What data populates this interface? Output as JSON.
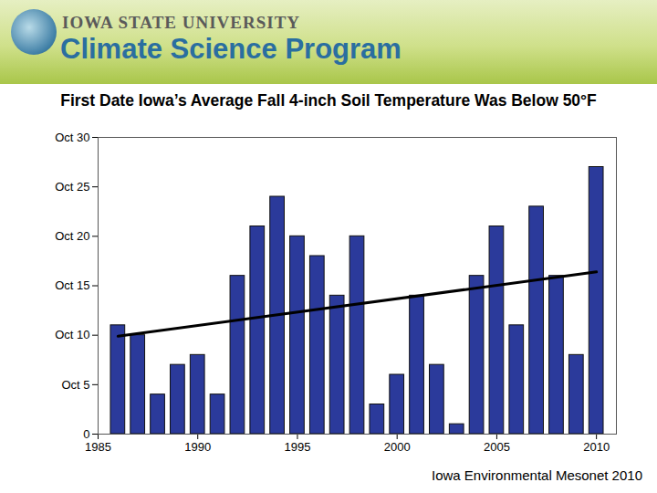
{
  "header": {
    "university": "IOWA STATE UNIVERSITY",
    "program": "Climate Science Program"
  },
  "chart_data": {
    "type": "bar",
    "title": "First Date Iowa’s Average Fall 4-inch Soil Temperature Was Below 50°F",
    "x": [
      1986,
      1987,
      1988,
      1989,
      1990,
      1991,
      1992,
      1993,
      1994,
      1995,
      1996,
      1997,
      1998,
      1999,
      2000,
      2001,
      2002,
      2003,
      2004,
      2005,
      2006,
      2007,
      2008,
      2009,
      2010
    ],
    "values": [
      11,
      10,
      4,
      7,
      8,
      4,
      16,
      21,
      24,
      20,
      18,
      14,
      20,
      3,
      6,
      14,
      7,
      1,
      16,
      21,
      11,
      23,
      16,
      8,
      27
    ],
    "color": "#2b3a9b",
    "trend_line": {
      "x": [
        1986,
        2010
      ],
      "values": [
        9.9,
        16.4
      ]
    },
    "xlim": [
      1985,
      2011
    ],
    "xticks": [
      1985,
      1990,
      1995,
      2000,
      2005,
      2010
    ],
    "ylim": [
      0,
      30
    ],
    "yticks": [
      0,
      {
        "value": 5,
        "label": "Oct 5"
      },
      {
        "value": 10,
        "label": "Oct 10"
      },
      {
        "value": 15,
        "label": "Oct 15"
      },
      {
        "value": 20,
        "label": "Oct 20"
      },
      {
        "value": 25,
        "label": "Oct 25"
      },
      {
        "value": 30,
        "label": "Oct 30"
      }
    ],
    "grid": false,
    "caption": "Iowa Environmental Mesonet 2010"
  }
}
